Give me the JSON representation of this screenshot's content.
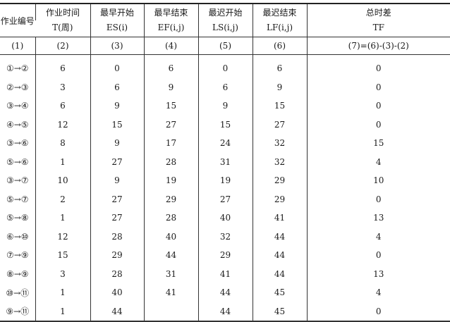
{
  "headers": {
    "id": "作业编号",
    "t_line1": "作业时间",
    "t_line2": "T(周)",
    "es_line1": "最早开始",
    "es_line2": "ES(i)",
    "ef_line1": "最早结束",
    "ef_line2": "EF(i,j)",
    "ls_line1": "最迟开始",
    "ls_line2": "LS(i,j)",
    "lf_line1": "最迟结束",
    "lf_line2": "LF(i,j)",
    "tf_line1": "总时差",
    "tf_line2": "TF"
  },
  "index_row": [
    "(1)",
    "(2)",
    "(3)",
    "(4)",
    "(5)",
    "(6)",
    "(7)=(6)-(3)-(2)"
  ],
  "rows": [
    [
      "①→②",
      "6",
      "0",
      "6",
      "0",
      "6",
      "0"
    ],
    [
      "②→③",
      "3",
      "6",
      "9",
      "6",
      "9",
      "0"
    ],
    [
      "③→④",
      "6",
      "9",
      "15",
      "9",
      "15",
      "0"
    ],
    [
      "④→⑤",
      "12",
      "15",
      "27",
      "15",
      "27",
      "0"
    ],
    [
      "③→⑥",
      "8",
      "9",
      "17",
      "24",
      "32",
      "15"
    ],
    [
      "⑤→⑥",
      "1",
      "27",
      "28",
      "31",
      "32",
      "4"
    ],
    [
      "③→⑦",
      "10",
      "9",
      "19",
      "19",
      "29",
      "10"
    ],
    [
      "⑤→⑦",
      "2",
      "27",
      "29",
      "27",
      "29",
      "0"
    ],
    [
      "⑤→⑧",
      "1",
      "27",
      "28",
      "40",
      "41",
      "13"
    ],
    [
      "⑥→⑩",
      "12",
      "28",
      "40",
      "32",
      "44",
      "4"
    ],
    [
      "⑦→⑨",
      "15",
      "29",
      "44",
      "29",
      "44",
      "0"
    ],
    [
      "⑧→⑨",
      "3",
      "28",
      "31",
      "41",
      "44",
      "13"
    ],
    [
      "⑩→⑪",
      "1",
      "40",
      "41",
      "44",
      "45",
      "4"
    ],
    [
      "⑨→⑪",
      "1",
      "44",
      "",
      "44",
      "45",
      "0"
    ]
  ]
}
